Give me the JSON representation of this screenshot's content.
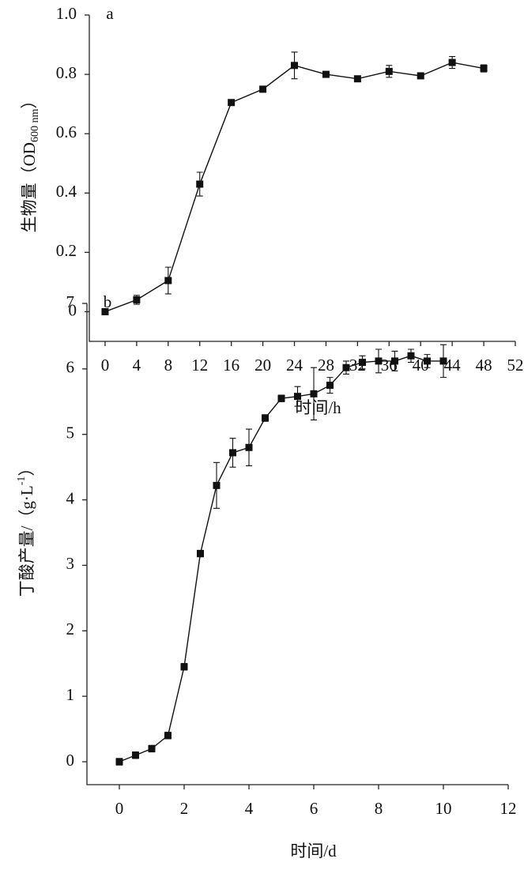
{
  "chart_data": [
    {
      "type": "line",
      "panel_label": "a",
      "color": "#111111",
      "xlabel": "时间/h",
      "ylabel": {
        "text": "生物量（OD",
        "sub": "600 nm",
        "end": "）"
      },
      "x": [
        0,
        4,
        8,
        12,
        16,
        20,
        24,
        28,
        32,
        36,
        40,
        44,
        48
      ],
      "values": [
        0,
        0.04,
        0.105,
        0.43,
        0.705,
        0.75,
        0.83,
        0.8,
        0.785,
        0.81,
        0.795,
        0.84,
        0.82
      ],
      "errors": [
        0.005,
        0.015,
        0.045,
        0.04,
        0.006,
        0.01,
        0.045,
        0.008,
        0.008,
        0.02,
        0.008,
        0.02,
        0.012
      ],
      "xlim": [
        -2,
        52
      ],
      "xticks": [
        0,
        4,
        8,
        12,
        16,
        20,
        24,
        28,
        32,
        36,
        40,
        44,
        48,
        52
      ],
      "ylim": [
        -0.1,
        1.0
      ],
      "yticks": [
        0,
        0.2,
        0.4,
        0.6,
        0.8,
        {
          "value": 1,
          "label": "1.0"
        }
      ]
    },
    {
      "type": "line",
      "panel_label": "b",
      "color": "#111111",
      "xlabel": "时间/d",
      "ylabel": {
        "text": "丁酸产量/（g·L",
        "sup": "-1",
        "end": "）"
      },
      "x": [
        0,
        0.5,
        1,
        1.5,
        2,
        2.5,
        3,
        3.5,
        4,
        4.5,
        5,
        5.5,
        6,
        6.5,
        7,
        7.5,
        8,
        8.5,
        9,
        9.5,
        10
      ],
      "values": [
        0,
        0.1,
        0.2,
        0.4,
        1.45,
        3.18,
        4.22,
        4.72,
        4.8,
        5.25,
        5.55,
        5.58,
        5.62,
        5.75,
        6.02,
        6.1,
        6.12,
        6.12,
        6.2,
        6.12,
        6.12
      ],
      "errors": [
        0.05,
        0.05,
        0.05,
        0.05,
        0.05,
        0.05,
        0.35,
        0.22,
        0.28,
        0.05,
        0.05,
        0.15,
        0.4,
        0.12,
        0.1,
        0.1,
        0.18,
        0.15,
        0.1,
        0.1,
        0.25
      ],
      "xlim": [
        -1,
        12
      ],
      "xticks": [
        0,
        2,
        4,
        6,
        8,
        10,
        12
      ],
      "ylim": [
        -0.35,
        7
      ],
      "yticks": [
        0,
        1,
        2,
        3,
        4,
        5,
        6,
        7
      ]
    }
  ]
}
